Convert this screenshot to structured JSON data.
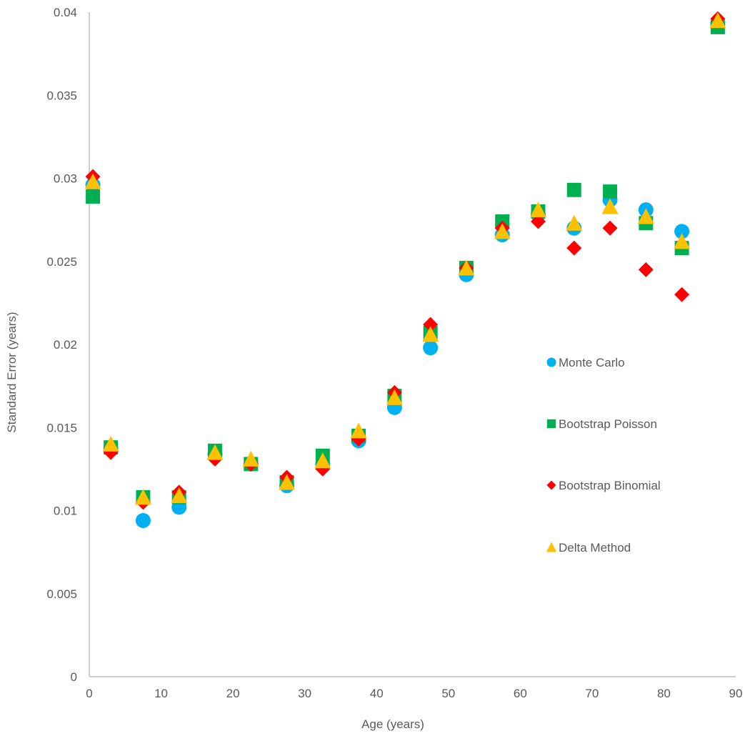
{
  "chart_data": {
    "type": "scatter",
    "title": "",
    "xlabel": "Age (years)",
    "ylabel": "Standard Error (years)",
    "xlim": [
      0,
      90
    ],
    "ylim": [
      0,
      0.04
    ],
    "x_ticks": [
      "0",
      "10",
      "20",
      "30",
      "40",
      "50",
      "60",
      "70",
      "80",
      "90"
    ],
    "y_ticks": [
      "0",
      "0.005",
      "0.01",
      "0.015",
      "0.02",
      "0.025",
      "0.03",
      "0.035",
      "0.04"
    ],
    "grid": false,
    "legend_position": "right",
    "series": [
      {
        "name": "Monte Carlo",
        "marker": "circle",
        "color": "#00B0F0",
        "x": [
          0.5,
          3,
          7.5,
          12.5,
          17.5,
          22.5,
          27.5,
          32.5,
          37.5,
          42.5,
          47.5,
          52.5,
          57.5,
          62.5,
          67.5,
          72.5,
          77.5,
          82.5,
          87.5
        ],
        "y": [
          0.0296,
          0.0137,
          0.0094,
          0.0102,
          0.0134,
          0.0128,
          0.0115,
          0.0128,
          0.0142,
          0.0162,
          0.0198,
          0.0242,
          0.0266,
          0.0278,
          0.027,
          0.0287,
          0.0281,
          0.0268,
          0.0393
        ]
      },
      {
        "name": "Bootstrap Poisson",
        "marker": "square",
        "color": "#00B050",
        "x": [
          0.5,
          3,
          7.5,
          12.5,
          17.5,
          22.5,
          27.5,
          32.5,
          37.5,
          42.5,
          47.5,
          52.5,
          57.5,
          62.5,
          67.5,
          72.5,
          77.5,
          82.5,
          87.5
        ],
        "y": [
          0.0289,
          0.0138,
          0.0108,
          0.0108,
          0.0136,
          0.0128,
          0.0117,
          0.0133,
          0.0145,
          0.0169,
          0.0207,
          0.0246,
          0.0274,
          0.028,
          0.0293,
          0.0292,
          0.0273,
          0.0258,
          0.0391
        ]
      },
      {
        "name": "Bootstrap Binomial",
        "marker": "diamond",
        "color": "#FF0000",
        "x": [
          0.5,
          3,
          7.5,
          12.5,
          17.5,
          22.5,
          27.5,
          32.5,
          37.5,
          42.5,
          47.5,
          52.5,
          57.5,
          62.5,
          67.5,
          72.5,
          77.5,
          82.5,
          87.5
        ],
        "y": [
          0.0301,
          0.0135,
          0.0105,
          0.0111,
          0.0131,
          0.0128,
          0.012,
          0.0125,
          0.0143,
          0.0171,
          0.0212,
          0.0246,
          0.027,
          0.0274,
          0.0258,
          0.027,
          0.0245,
          0.023,
          0.0396
        ]
      },
      {
        "name": "Delta Method",
        "marker": "triangle",
        "color": "#FFC000",
        "x": [
          0.5,
          3,
          7.5,
          12.5,
          17.5,
          22.5,
          27.5,
          32.5,
          37.5,
          42.5,
          47.5,
          52.5,
          57.5,
          62.5,
          67.5,
          72.5,
          77.5,
          82.5,
          87.5
        ],
        "y": [
          0.0298,
          0.014,
          0.0108,
          0.0109,
          0.0135,
          0.0131,
          0.0117,
          0.013,
          0.0148,
          0.0168,
          0.0206,
          0.0246,
          0.0268,
          0.0281,
          0.0273,
          0.0283,
          0.0277,
          0.0262,
          0.0395
        ]
      }
    ]
  }
}
